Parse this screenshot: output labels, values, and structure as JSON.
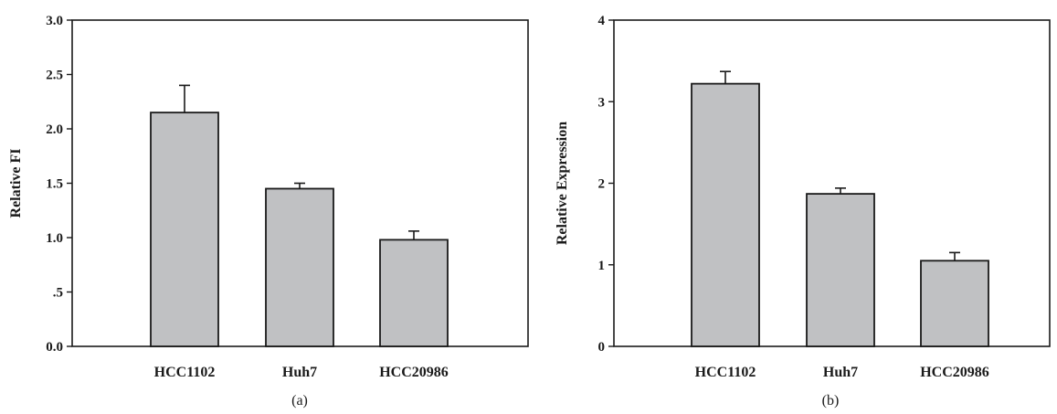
{
  "chart_data": [
    {
      "type": "bar",
      "panel_label": "(a)",
      "categories": [
        "HCC1102",
        "Huh7",
        "HCC20986"
      ],
      "values": [
        2.15,
        1.45,
        0.98
      ],
      "error": [
        0.25,
        0.05,
        0.08
      ],
      "ylabel": "Relative FI",
      "ylim": [
        0,
        3.0
      ],
      "yticks": [
        0,
        0.5,
        1.0,
        1.5,
        2.0,
        2.5,
        3.0
      ],
      "yticklabels": [
        "0.0",
        ".5",
        "1.0",
        "1.5",
        "2.0",
        "2.5",
        "3.0"
      ],
      "bar_color": "#c0c1c3",
      "grid": false
    },
    {
      "type": "bar",
      "panel_label": "(b)",
      "categories": [
        "HCC1102",
        "Huh7",
        "HCC20986"
      ],
      "values": [
        3.22,
        1.87,
        1.05
      ],
      "error": [
        0.15,
        0.07,
        0.1
      ],
      "ylabel": "Relative Expression",
      "ylim": [
        0,
        4
      ],
      "yticks": [
        0,
        1,
        2,
        3,
        4
      ],
      "yticklabels": [
        "0",
        "1",
        "2",
        "3",
        "4"
      ],
      "bar_color": "#c0c1c3",
      "grid": false
    }
  ]
}
